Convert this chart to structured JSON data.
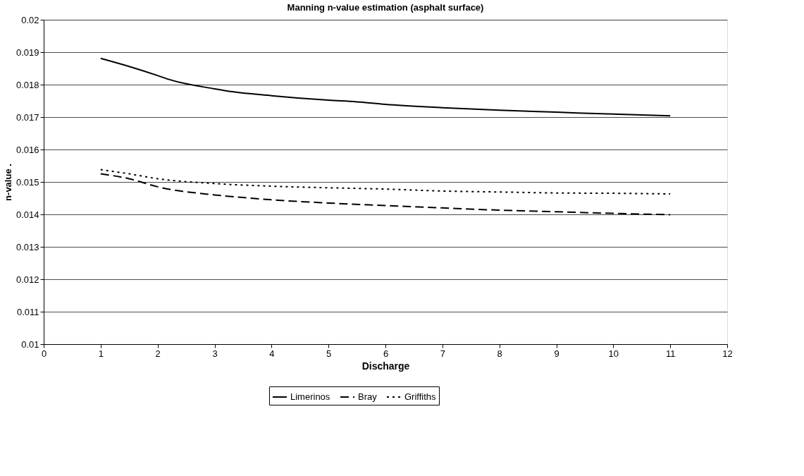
{
  "chart_data": {
    "type": "line",
    "title": "Manning n-value estimation (asphalt surface)",
    "xlabel": "Discharge",
    "ylabel": "n-value  .",
    "xlim": [
      0,
      12
    ],
    "xticks": [
      0,
      1,
      2,
      3,
      4,
      5,
      6,
      7,
      8,
      9,
      10,
      11,
      12
    ],
    "ylim": [
      0.01,
      0.02
    ],
    "yticks": [
      0.01,
      0.011,
      0.012,
      0.013,
      0.014,
      0.015,
      0.016,
      0.017,
      0.018,
      0.019,
      0.02
    ],
    "grid": "y",
    "legend": "bottom",
    "marker": "none",
    "series": [
      {
        "name": "Limerinos",
        "color": "#000000",
        "line_style": "solid",
        "x": [
          1,
          1.5,
          2,
          2.2,
          3,
          3.2,
          4,
          5,
          5.5,
          6,
          7,
          8,
          9,
          10,
          11
        ],
        "values": [
          0.01881,
          0.01856,
          0.01828,
          0.01816,
          0.01787,
          0.01781,
          0.01766,
          0.01752,
          0.01747,
          0.01739,
          0.01729,
          0.01721,
          0.01715,
          0.01709,
          0.01704
        ]
      },
      {
        "name": "Bray",
        "color": "#000000",
        "line_style": "dashed",
        "x": [
          1,
          1.5,
          2,
          3,
          3.5,
          4,
          5,
          6,
          7,
          8,
          9,
          10,
          11
        ],
        "values": [
          0.01525,
          0.0151,
          0.01485,
          0.0146,
          0.01452,
          0.01445,
          0.01435,
          0.01427,
          0.0142,
          0.01413,
          0.01408,
          0.01403,
          0.01399
        ]
      },
      {
        "name": "Griffiths",
        "color": "#000000",
        "line_style": "dotted",
        "x": [
          1,
          1.5,
          2,
          3,
          4,
          5,
          6,
          7,
          8,
          9,
          10,
          11
        ],
        "values": [
          0.01538,
          0.01525,
          0.0151,
          0.01495,
          0.01487,
          0.01482,
          0.01478,
          0.01472,
          0.01469,
          0.01466,
          0.01465,
          0.01463
        ]
      }
    ]
  }
}
